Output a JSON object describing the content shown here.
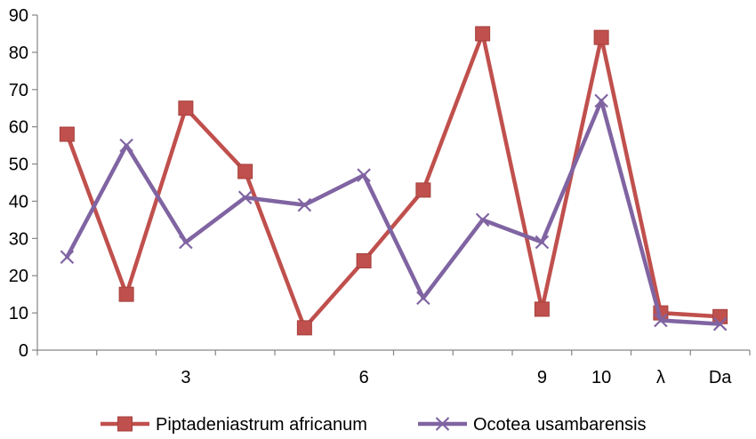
{
  "chart_data": {
    "type": "line",
    "title": "",
    "xlabel": "",
    "ylabel": "",
    "categories": [
      "",
      "",
      "3",
      "",
      "",
      "6",
      "",
      "",
      "9",
      "10",
      "λ",
      "Da"
    ],
    "ylim": [
      0,
      90
    ],
    "yticks": [
      0,
      10,
      20,
      30,
      40,
      50,
      60,
      70,
      80,
      90
    ],
    "grid": false,
    "legend_position": "bottom",
    "series": [
      {
        "name": "Piptadeniastrum africanum",
        "color": "#c0504d",
        "marker": "square",
        "values": [
          58,
          15,
          65,
          48,
          6,
          24,
          43,
          85,
          11,
          84,
          10,
          9
        ]
      },
      {
        "name": "Ocotea usambarensis",
        "color": "#8064a2",
        "marker": "x",
        "values": [
          25,
          55,
          29,
          41,
          39,
          47,
          14,
          35,
          29,
          67,
          8,
          7
        ]
      }
    ]
  }
}
